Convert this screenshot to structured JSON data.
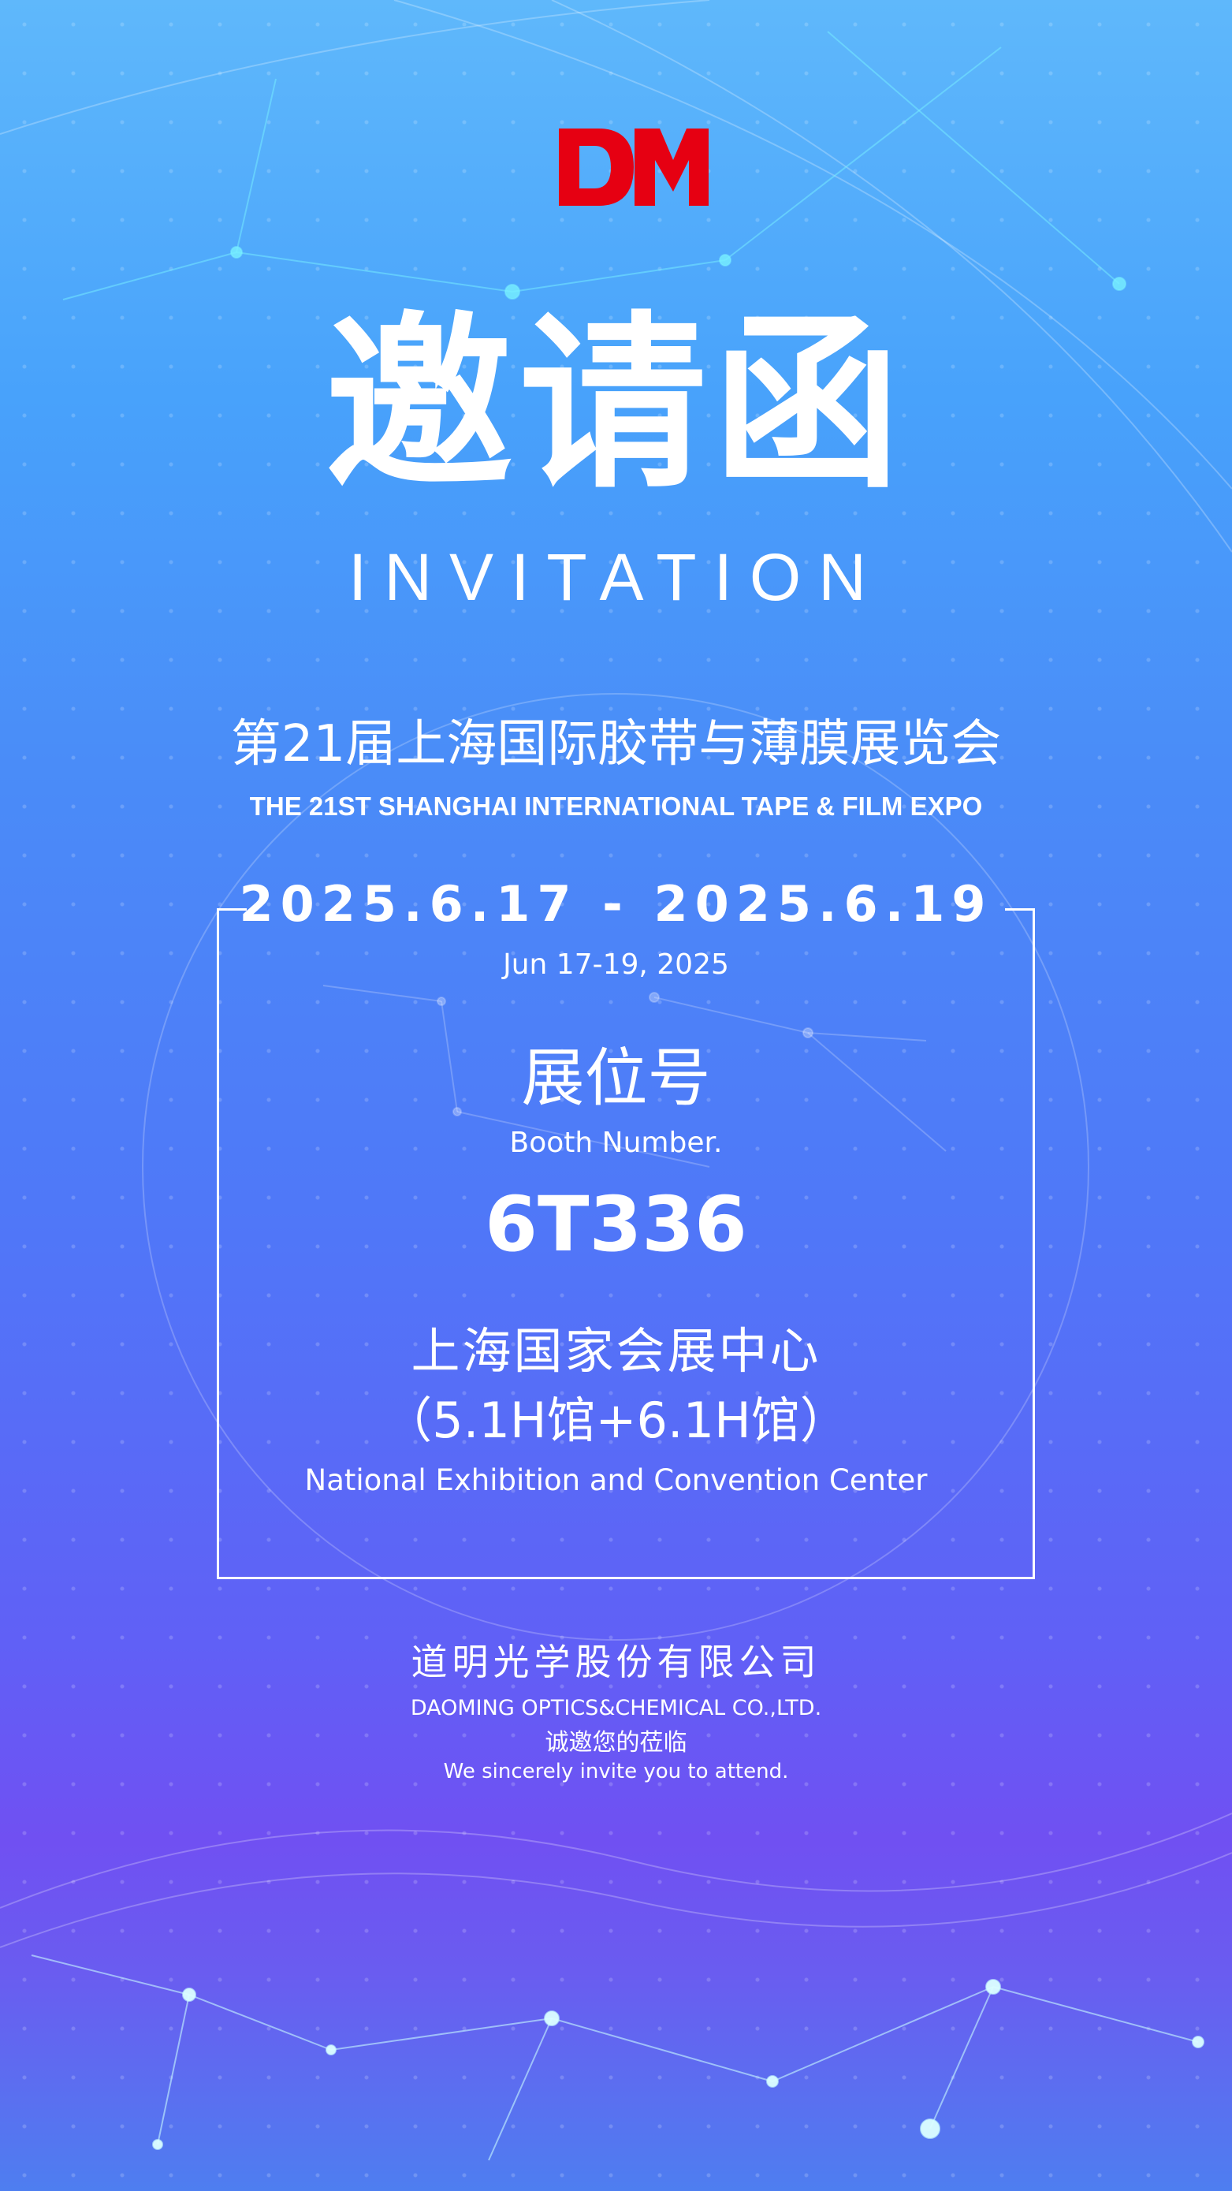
{
  "logo": {
    "text": "DM",
    "color": "#e60012"
  },
  "title": {
    "cn": "邀请函",
    "en": "INVITATION"
  },
  "expo": {
    "cn": "第21届上海国际胶带与薄膜展览会",
    "en": "THE 21ST SHANGHAI INTERNATIONAL TAPE & FILM EXPO"
  },
  "event": {
    "date": "2025.6.17 - 2025.6.19",
    "date_en": "Jun 17-19, 2025"
  },
  "booth": {
    "label_cn": "展位号",
    "label_en": "Booth Number.",
    "number": "6T336"
  },
  "venue": {
    "cn": "上海国家会展中心",
    "halls": "（5.1H馆+6.1H馆）",
    "en": "National Exhibition and Convention Center"
  },
  "company": {
    "cn": "道明光学股份有限公司",
    "en": "DAOMING OPTICS&CHEMICAL CO.,LTD."
  },
  "invite": {
    "cn": "诚邀您的莅临",
    "en": "We sincerely invite you to attend."
  },
  "colors": {
    "top": "#5fb8fb",
    "middle": "#4f78f8",
    "bottom": "#7050f2",
    "logo": "#e60012"
  }
}
